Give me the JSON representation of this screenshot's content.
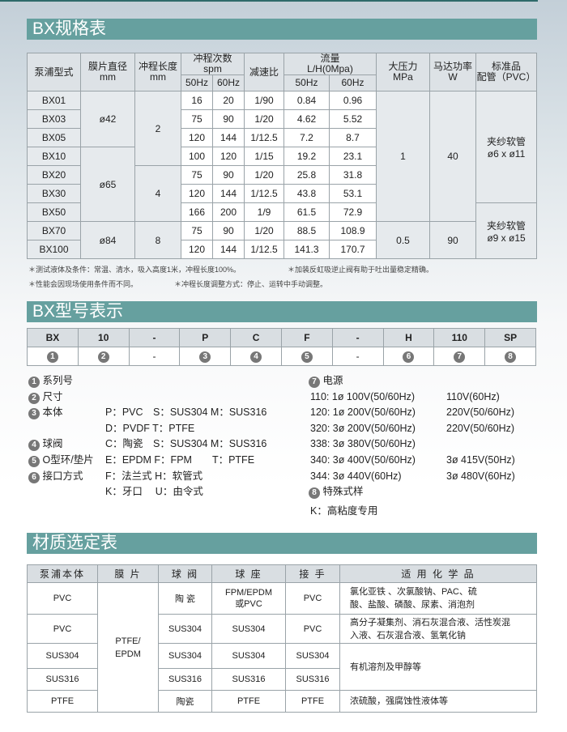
{
  "colors": {
    "section_bar": "#66a09f",
    "header_cell": "#dde2e6"
  },
  "section1": {
    "title": "BX规格表"
  },
  "spec": {
    "headers": {
      "model": "泵浦型式",
      "diameter": "膜片直径",
      "diameter_unit": "mm",
      "stroke": "冲程长度",
      "stroke_unit": "mm",
      "spm": "冲程次数",
      "spm_unit": "spm",
      "ratio": "减速比",
      "flow": "流量",
      "flow_unit": "L/H(0Mpa)",
      "hz50": "50Hz",
      "hz60": "60Hz",
      "pressure": "大压力",
      "pressure_unit": "MPa",
      "power": "马达功率",
      "power_unit": "W",
      "pipe": "标准品",
      "pipe2": "配管（PVC）"
    },
    "rows": [
      {
        "model": "BX01",
        "spm50": "16",
        "spm60": "20",
        "ratio": "1/90",
        "flow50": "0.84",
        "flow60": "0.96"
      },
      {
        "model": "BX03",
        "spm50": "75",
        "spm60": "90",
        "ratio": "1/20",
        "flow50": "4.62",
        "flow60": "5.52"
      },
      {
        "model": "BX05",
        "spm50": "120",
        "spm60": "144",
        "ratio": "1/12.5",
        "flow50": "7.2",
        "flow60": "8.7"
      },
      {
        "model": "BX10",
        "spm50": "100",
        "spm60": "120",
        "ratio": "1/15",
        "flow50": "19.2",
        "flow60": "23.1"
      },
      {
        "model": "BX20",
        "spm50": "75",
        "spm60": "90",
        "ratio": "1/20",
        "flow50": "25.8",
        "flow60": "31.8"
      },
      {
        "model": "BX30",
        "spm50": "120",
        "spm60": "144",
        "ratio": "1/12.5",
        "flow50": "43.8",
        "flow60": "53.1"
      },
      {
        "model": "BX50",
        "spm50": "166",
        "spm60": "200",
        "ratio": "1/9",
        "flow50": "61.5",
        "flow60": "72.9"
      },
      {
        "model": "BX70",
        "spm50": "75",
        "spm60": "90",
        "ratio": "1/20",
        "flow50": "88.5",
        "flow60": "108.9"
      },
      {
        "model": "BX100",
        "spm50": "120",
        "spm60": "144",
        "ratio": "1/12.5",
        "flow50": "141.3",
        "flow60": "170.7"
      }
    ],
    "diameters": [
      "ø42",
      "ø65",
      "ø84"
    ],
    "strokes": [
      "2",
      "4",
      "8"
    ],
    "pressures": [
      "1",
      "0.5"
    ],
    "powers": [
      "40",
      "90"
    ],
    "pipes": [
      {
        "name": "夹纱软管",
        "size": "ø6 x ø11"
      },
      {
        "name": "夹纱软管",
        "size": "ø9 x ø15"
      }
    ]
  },
  "notes": [
    "＊测试液体及条件：常温、清水，吸入高度1米，冲程长度100%。",
    "＊加装反虹吸逆止阀有助于吐出量稳定精确。",
    "＊性能会因现场使用条件而不同。",
    "＊冲程长度调整方式：停止、运转中手动调整。"
  ],
  "section2": {
    "title": "BX型号表示"
  },
  "code": {
    "parts": [
      "BX",
      "10",
      "-",
      "P",
      "C",
      "F",
      "-",
      "H",
      "110",
      "SP"
    ],
    "marks": [
      "1",
      "2",
      "-",
      "3",
      "4",
      "5",
      "-",
      "6",
      "7",
      "8"
    ]
  },
  "legend_left": [
    {
      "num": "1",
      "label": "系列号",
      "values": []
    },
    {
      "num": "2",
      "label": "尺寸",
      "values": []
    },
    {
      "num": "3",
      "label": "本体",
      "values": [
        "P：PVC　S：SUS304  M：SUS316",
        "D：PVDF  T：PTFE"
      ]
    },
    {
      "num": "4",
      "label": "球阀",
      "values": [
        "C：陶瓷　S：SUS304  M：SUS316"
      ]
    },
    {
      "num": "5",
      "label": "O型环/垫片",
      "values": [
        "E：EPDM  F：FPM　　T：PTFE"
      ]
    },
    {
      "num": "6",
      "label": "接口方式",
      "values": [
        "F：法兰式  H：软管式",
        "K：牙口　 U：由令式"
      ]
    }
  ],
  "legend_right": {
    "power": {
      "num": "7",
      "label": "电源",
      "lines": [
        [
          "110: 1ø 100V(50/60Hz)",
          "110V(60Hz)"
        ],
        [
          "120: 1ø 200V(50/60Hz)",
          "220V(50/60Hz)"
        ],
        [
          "320: 3ø 200V(50/60Hz)",
          "220V(50/60Hz)"
        ],
        [
          "338: 3ø 380V(50/60Hz)",
          ""
        ],
        [
          "340: 3ø 400V(50/60Hz)",
          "3ø 415V(50Hz)"
        ],
        [
          "344: 3ø 440V(60Hz)",
          "3ø 480V(60Hz)"
        ]
      ]
    },
    "special": {
      "num": "8",
      "label": "特殊式样",
      "value": "K：高粘度专用"
    }
  },
  "section3": {
    "title": "材质选定表"
  },
  "material": {
    "headers": [
      "泵浦本体",
      "膜 片",
      "球 阀",
      "球 座",
      "接 手",
      "适 用 化 学 品"
    ],
    "diaphragm": "PTFE/ EPDM",
    "rows": [
      {
        "body": "PVC",
        "ball": "陶 瓷",
        "seat": "FPM/EPDM 或PVC",
        "joint": "PVC",
        "chem": "氯化亚铁 、次氯酸钠、PAC、硫酸、盐酸、磷酸、尿素、消泡剂"
      },
      {
        "body": "PVC",
        "ball": "SUS304",
        "seat": "SUS304",
        "joint": "PVC",
        "chem": "高分子凝集剂、消石灰混合液、活性炭混入液、石灰混合液、氢氧化钠"
      },
      {
        "body": "SUS304",
        "ball": "SUS304",
        "seat": "SUS304",
        "joint": "SUS304",
        "chem": "有机溶剂及甲醇等"
      },
      {
        "body": "SUS316",
        "ball": "SUS316",
        "seat": "SUS316",
        "joint": "SUS316"
      },
      {
        "body": "PTFE",
        "ball": "陶瓷",
        "seat": "PTFE",
        "joint": "PTFE",
        "chem": "浓硫酸，强腐蚀性液体等"
      }
    ]
  }
}
